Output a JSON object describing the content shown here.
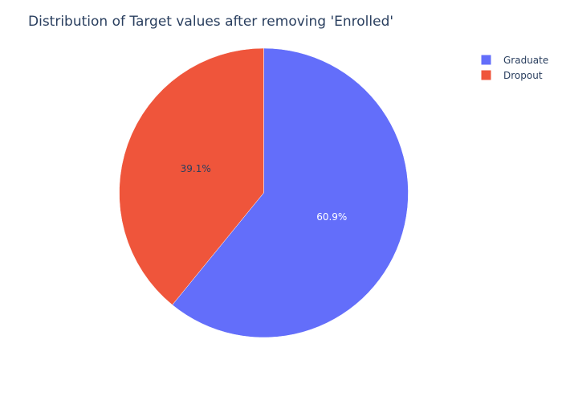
{
  "chart_data": {
    "type": "pie",
    "title": "Distribution of Target values after removing 'Enrolled'",
    "labels": [
      "Graduate",
      "Dropout"
    ],
    "values": [
      60.9,
      39.1
    ],
    "text_labels": [
      "60.9%",
      "39.1%"
    ],
    "colors": [
      "#636efa",
      "#ef553b"
    ],
    "label_colors": [
      "#ffffff",
      "#2a3f5f"
    ],
    "direction": "clockwise",
    "start_angle": "top (12 o'clock)",
    "legend": {
      "position": "top-right",
      "entries": [
        "Graduate",
        "Dropout"
      ]
    }
  }
}
